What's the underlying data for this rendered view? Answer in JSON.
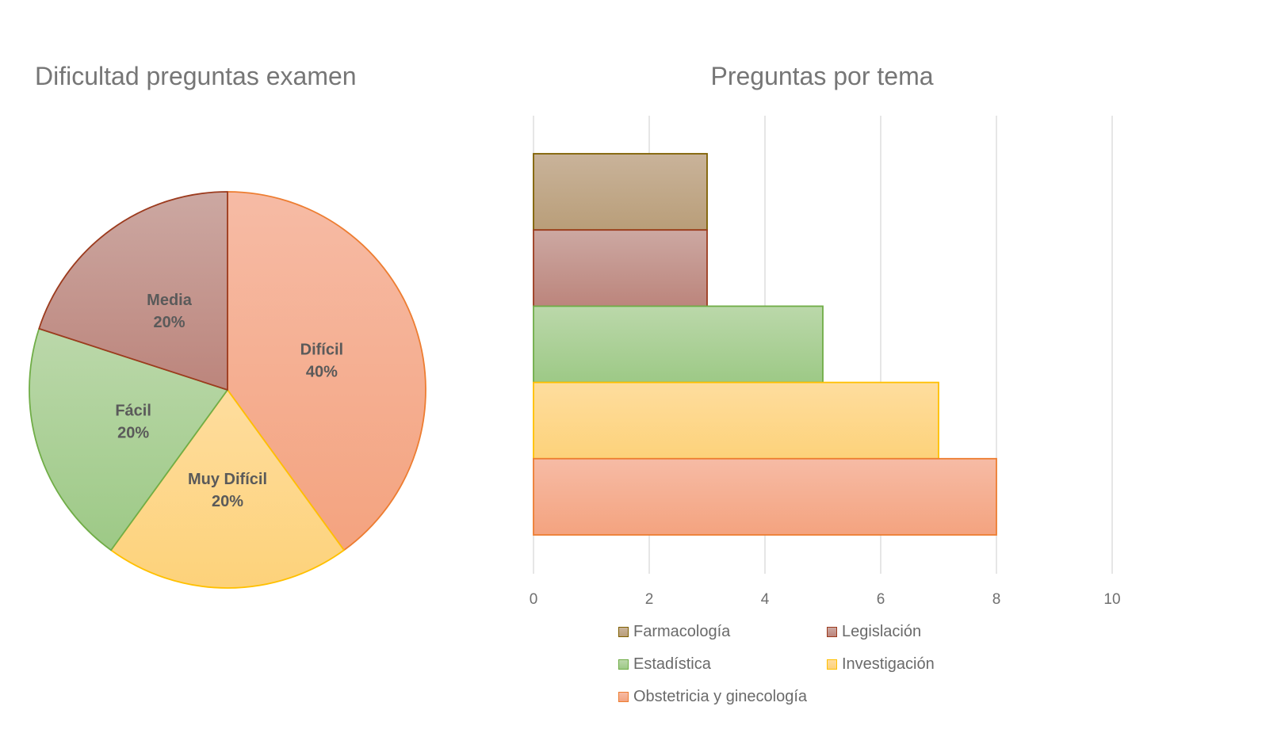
{
  "chart_data": [
    {
      "type": "pie",
      "title": "Dificultad preguntas examen",
      "slices": [
        {
          "label": "Difícil",
          "value": 40,
          "display": "40%",
          "fill_top": "#F6BBA5",
          "fill_bottom": "#F4A37F",
          "stroke": "#ED7D31"
        },
        {
          "label": "Muy Difícil",
          "value": 20,
          "display": "20%",
          "fill_top": "#FEDD9E",
          "fill_bottom": "#FDD27A",
          "stroke": "#FFC000"
        },
        {
          "label": "Fácil",
          "value": 20,
          "display": "20%",
          "fill_top": "#BBD8AA",
          "fill_bottom": "#9DC986",
          "stroke": "#70AD47"
        },
        {
          "label": "Media",
          "value": 20,
          "display": "20%",
          "fill_top": "#CCA8A2",
          "fill_bottom": "#BC857C",
          "stroke": "#9C3B1E"
        }
      ],
      "data_labels": "label-and-percent",
      "legend": "none"
    },
    {
      "type": "bar",
      "orientation": "horizontal",
      "title": "Preguntas por tema",
      "series": [
        {
          "name": "Farmacología",
          "values": [
            3
          ],
          "fill_top": "#C9B39A",
          "fill_bottom": "#B99E79",
          "stroke": "#7F6000"
        },
        {
          "name": "Legislación",
          "values": [
            3
          ],
          "fill_top": "#CCA8A2",
          "fill_bottom": "#BC857C",
          "stroke": "#9C3B1E"
        },
        {
          "name": "Estadística",
          "values": [
            5
          ],
          "fill_top": "#BBD8AA",
          "fill_bottom": "#9DC986",
          "stroke": "#70AD47"
        },
        {
          "name": "Investigación",
          "values": [
            7
          ],
          "fill_top": "#FEDD9E",
          "fill_bottom": "#FDD27A",
          "stroke": "#FFC000"
        },
        {
          "name": "Obstetricia y ginecología",
          "values": [
            8
          ],
          "fill_top": "#F6BBA5",
          "fill_bottom": "#F4A37F",
          "stroke": "#ED7D31"
        }
      ],
      "xlim": [
        0,
        10
      ],
      "x_ticks": [
        "0",
        "2",
        "4",
        "6",
        "8",
        "10"
      ],
      "grid": "vertical",
      "legend": "bottom"
    }
  ]
}
